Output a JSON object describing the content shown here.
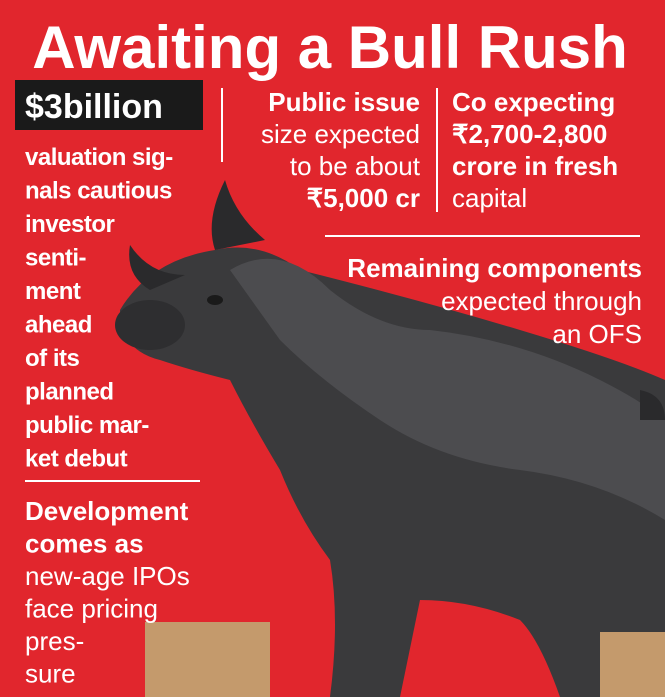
{
  "title": "Awaiting a Bull Rush",
  "valuation": {
    "highlight": "$3billion",
    "lines": [
      "valuation sig-",
      "nals cautious",
      "investor",
      "senti-",
      "ment",
      "ahead",
      "of its",
      "planned",
      "public mar-",
      "ket debut"
    ]
  },
  "public_issue": {
    "lines": [
      "Public issue",
      "size expected",
      "to be about",
      "₹5,000 cr"
    ]
  },
  "fresh_capital": {
    "lines": [
      "Co expecting",
      "₹2,700-2,800",
      "crore in fresh",
      "capital"
    ]
  },
  "ofs": {
    "lines": [
      "Remaining components",
      "expected through",
      "an OFS"
    ]
  },
  "development": {
    "lines": [
      "Development",
      "comes as",
      "new-age IPOs",
      "face pricing",
      "pres-",
      "sure"
    ]
  }
}
